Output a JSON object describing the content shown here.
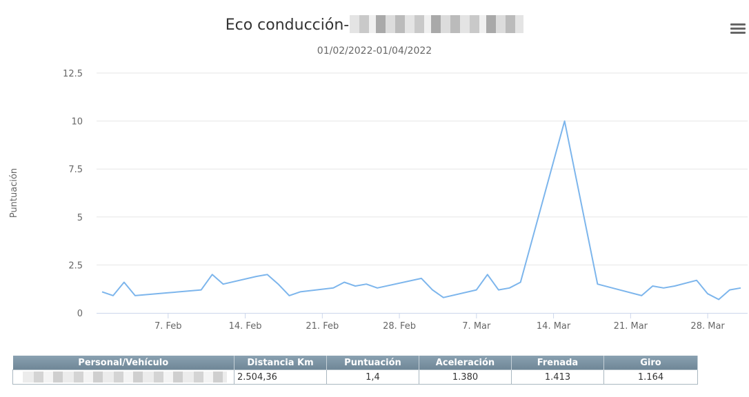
{
  "chart_data": {
    "type": "line",
    "title": "Eco conducción-",
    "subtitle": "01/02/2022-01/04/2022",
    "ylabel": "Puntuación",
    "xlabel": "",
    "ylim": [
      0,
      12.5
    ],
    "yticks": [
      "0",
      "2.5",
      "5",
      "7.5",
      "10",
      "12.5"
    ],
    "xticks": [
      {
        "date": "2022-02-07",
        "label": "7. Feb"
      },
      {
        "date": "2022-02-14",
        "label": "14. Feb"
      },
      {
        "date": "2022-02-21",
        "label": "21. Feb"
      },
      {
        "date": "2022-02-28",
        "label": "28. Feb"
      },
      {
        "date": "2022-03-07",
        "label": "7. Mar"
      },
      {
        "date": "2022-03-14",
        "label": "14. Mar"
      },
      {
        "date": "2022-03-21",
        "label": "21. Mar"
      },
      {
        "date": "2022-03-28",
        "label": "28. Mar"
      }
    ],
    "xlim": [
      "2022-02-01",
      "2022-03-31"
    ],
    "grid": true,
    "line_color": "#7cb5ec",
    "series": [
      {
        "points": [
          [
            "2022-02-01",
            1.1
          ],
          [
            "2022-02-02",
            0.9
          ],
          [
            "2022-02-03",
            1.6
          ],
          [
            "2022-02-04",
            0.9
          ],
          [
            "2022-02-07",
            1.05
          ],
          [
            "2022-02-09",
            1.15
          ],
          [
            "2022-02-10",
            1.2
          ],
          [
            "2022-02-11",
            2.0
          ],
          [
            "2022-02-12",
            1.5
          ],
          [
            "2022-02-15",
            1.9
          ],
          [
            "2022-02-16",
            2.0
          ],
          [
            "2022-02-17",
            1.5
          ],
          [
            "2022-02-18",
            0.9
          ],
          [
            "2022-02-19",
            1.1
          ],
          [
            "2022-02-22",
            1.3
          ],
          [
            "2022-02-23",
            1.6
          ],
          [
            "2022-02-24",
            1.4
          ],
          [
            "2022-02-25",
            1.5
          ],
          [
            "2022-02-26",
            1.3
          ],
          [
            "2022-03-02",
            1.8
          ],
          [
            "2022-03-03",
            1.2
          ],
          [
            "2022-03-04",
            0.8
          ],
          [
            "2022-03-07",
            1.2
          ],
          [
            "2022-03-08",
            2.0
          ],
          [
            "2022-03-09",
            1.2
          ],
          [
            "2022-03-10",
            1.3
          ],
          [
            "2022-03-11",
            1.6
          ],
          [
            "2022-03-15",
            10.0
          ],
          [
            "2022-03-18",
            1.5
          ],
          [
            "2022-03-22",
            0.9
          ],
          [
            "2022-03-23",
            1.4
          ],
          [
            "2022-03-24",
            1.3
          ],
          [
            "2022-03-25",
            1.4
          ],
          [
            "2022-03-27",
            1.7
          ],
          [
            "2022-03-28",
            1.0
          ],
          [
            "2022-03-29",
            0.7
          ],
          [
            "2022-03-30",
            1.2
          ],
          [
            "2022-03-31",
            1.3
          ]
        ]
      }
    ]
  },
  "table": {
    "headers": [
      "Personal/Vehículo",
      "Distancia Km",
      "Puntuación",
      "Aceleración",
      "Frenada",
      "Giro"
    ],
    "row": {
      "distancia": "2.504,36",
      "puntuacion": "1,4",
      "aceleracion": "1.380",
      "frenada": "1.413",
      "giro": "1.164"
    }
  },
  "icons": {
    "menu": "hamburger-menu-icon"
  }
}
